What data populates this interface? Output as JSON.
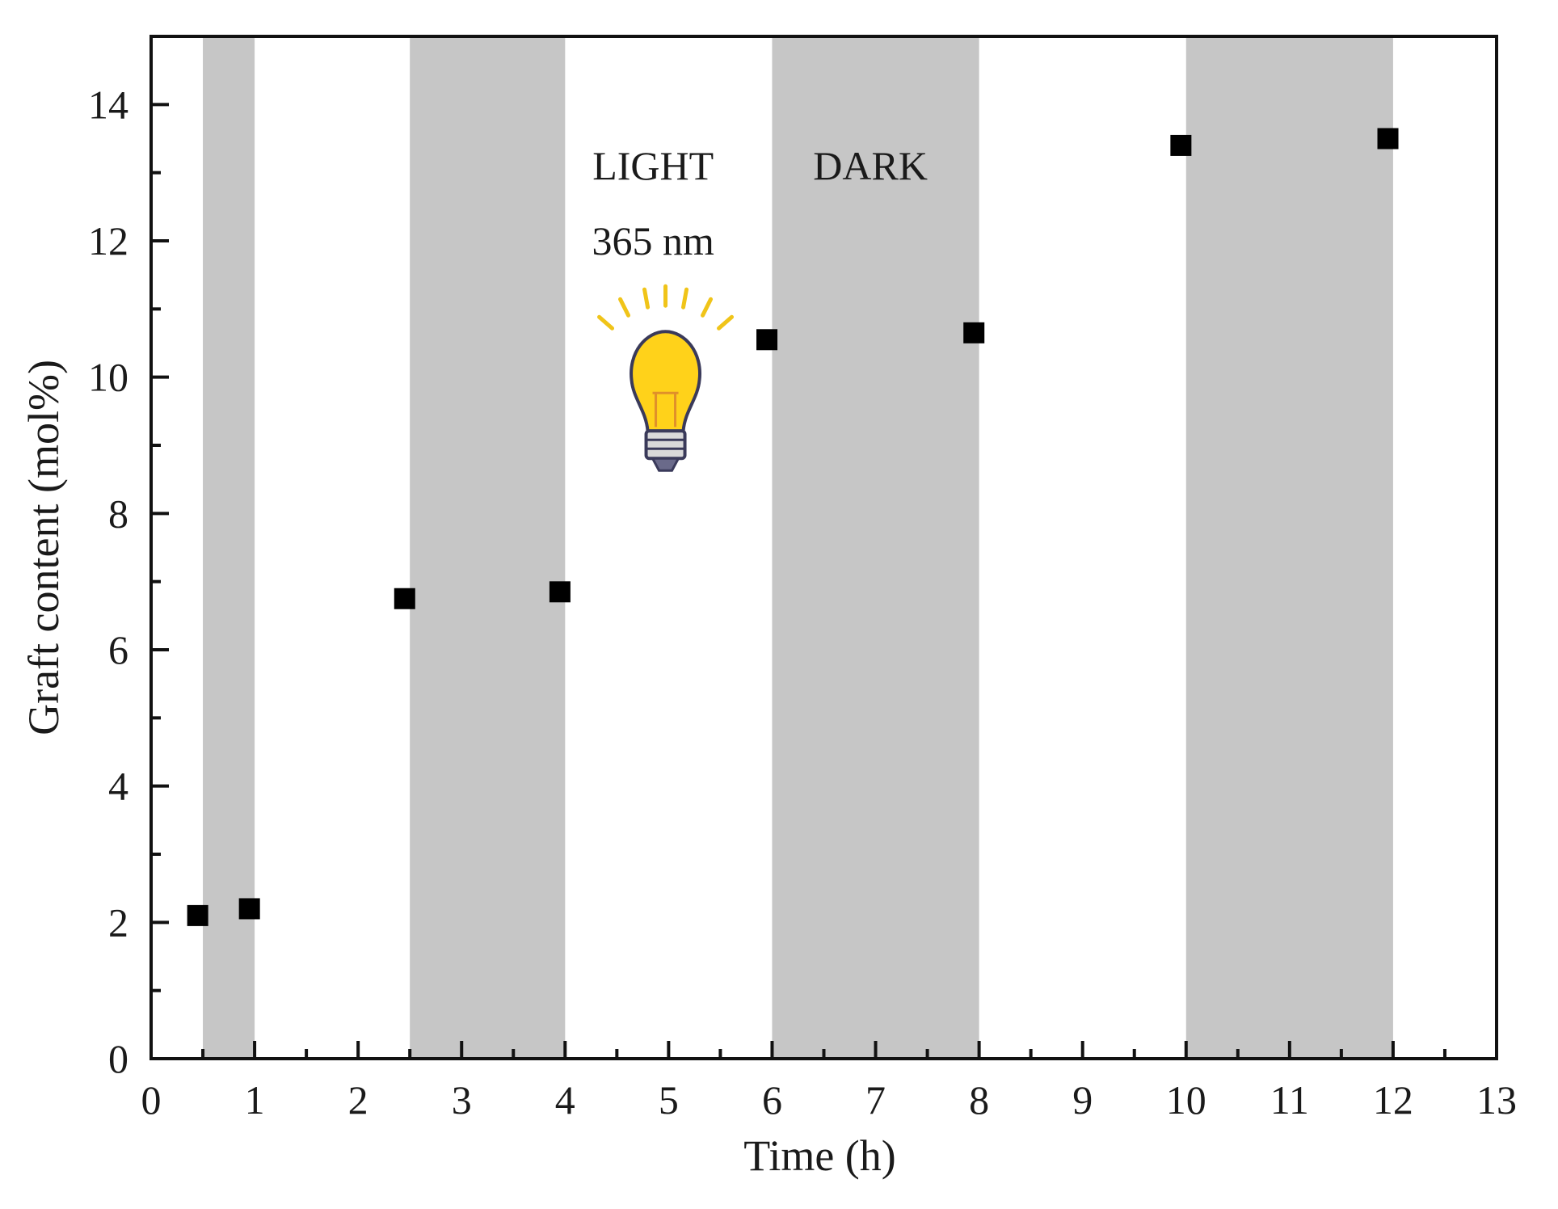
{
  "chart_data": {
    "type": "scatter",
    "title": "",
    "xlabel": "Time (h)",
    "ylabel": "Graft content (mol%)",
    "xlim": [
      0,
      13
    ],
    "ylim": [
      0,
      15
    ],
    "x_ticks": [
      0,
      1,
      2,
      3,
      4,
      5,
      6,
      7,
      8,
      9,
      10,
      11,
      12,
      13
    ],
    "y_ticks": [
      0,
      2,
      4,
      6,
      8,
      10,
      12,
      14
    ],
    "x_minor_step": 0.5,
    "y_minor_step": 1,
    "grid": false,
    "legend": "none",
    "marker": "square",
    "marker_color": "#000000",
    "shaded_band_color": "#c6c6c6",
    "dark_intervals": [
      [
        0.5,
        1.0
      ],
      [
        2.5,
        4.0
      ],
      [
        6.0,
        8.0
      ],
      [
        10.0,
        12.0
      ]
    ],
    "series": [
      {
        "points": [
          {
            "x": 0.45,
            "y": 2.1
          },
          {
            "x": 0.95,
            "y": 2.2
          },
          {
            "x": 2.45,
            "y": 6.75
          },
          {
            "x": 3.95,
            "y": 6.85
          },
          {
            "x": 5.95,
            "y": 10.55
          },
          {
            "x": 7.95,
            "y": 10.65
          },
          {
            "x": 9.95,
            "y": 13.4
          },
          {
            "x": 11.95,
            "y": 13.5
          }
        ]
      }
    ],
    "annotations": {
      "light_label": "LIGHT",
      "light_wavelength": "365 nm",
      "dark_label": "DARK",
      "bulb_icon": "light-bulb-icon",
      "bulb_color": "#ffd21a"
    }
  }
}
